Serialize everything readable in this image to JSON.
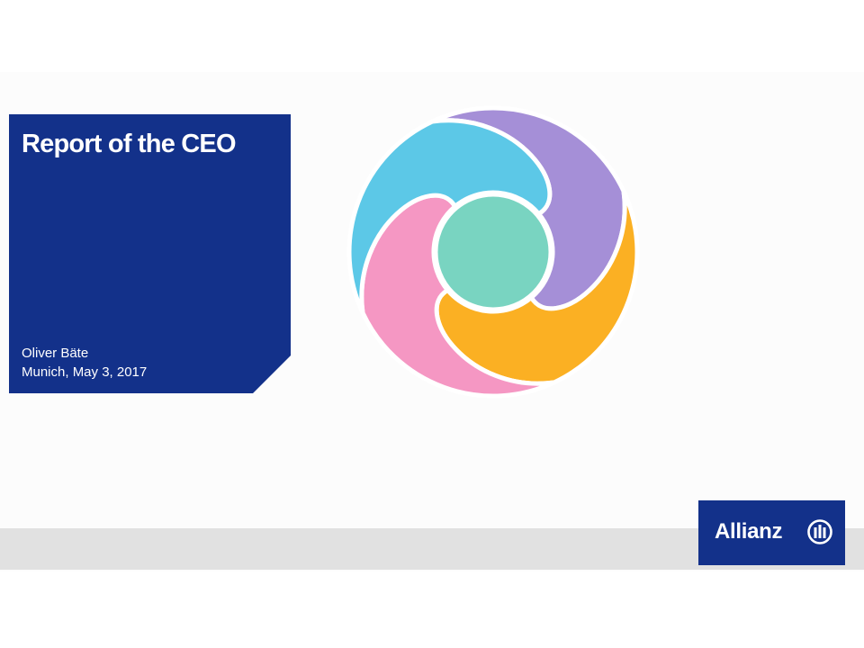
{
  "slide": {
    "title": "Report of the CEO",
    "presenter": "Oliver Bäte",
    "place_date": "Munich, May 3, 2017"
  },
  "logo": {
    "text": "Allianz"
  },
  "colors": {
    "title_box": "#13318a",
    "petals": [
      "#a58fd7",
      "#fbb023",
      "#f597c3",
      "#5cc8e7"
    ],
    "center": "#79d4c1"
  }
}
